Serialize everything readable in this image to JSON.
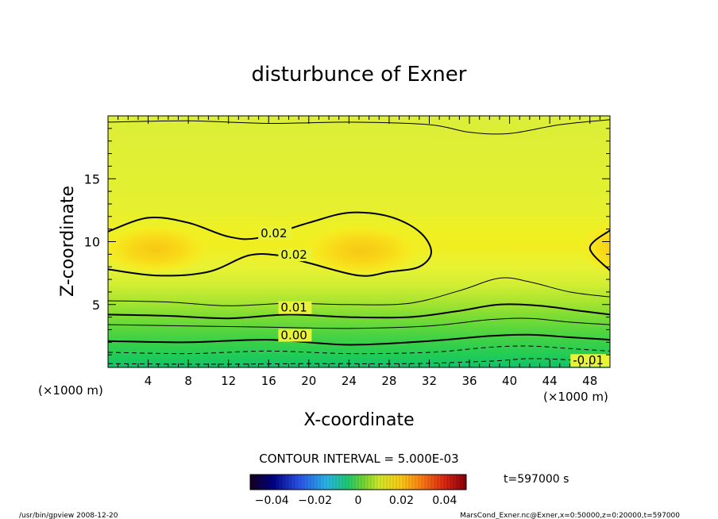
{
  "chart_data": {
    "type": "contour",
    "title": "disturbunce of Exner",
    "xlabel": "X-coordinate",
    "ylabel": "Z-coordinate",
    "x_unit_left": "(×1000 m)",
    "x_unit_right": "(×1000 m)",
    "xlim": [
      0,
      50
    ],
    "ylim": [
      0,
      20
    ],
    "x_ticks": [
      4,
      8,
      12,
      16,
      20,
      24,
      28,
      32,
      36,
      40,
      44,
      48
    ],
    "y_ticks": [
      5,
      10,
      15
    ],
    "contour_interval_text": "CONTOUR INTERVAL = 5.000E-03",
    "contour_labels": [
      {
        "text": "0.02",
        "x": 15.2,
        "z": 10.4
      },
      {
        "text": "0.02",
        "x": 17.2,
        "z": 8.7
      },
      {
        "text": "0.01",
        "x": 17.2,
        "z": 4.5
      },
      {
        "text": "0.00",
        "x": 17.2,
        "z": 2.3
      },
      {
        "text": "-0.01",
        "x": 46.3,
        "z": 0.3
      }
    ],
    "contours": [
      {
        "level": 0.02,
        "style": "thick",
        "points": [
          [
            0,
            10.8
          ],
          [
            4,
            11.9
          ],
          [
            8,
            11.5
          ],
          [
            12,
            10.4
          ],
          [
            15,
            10.3
          ],
          [
            20,
            11.5
          ],
          [
            24,
            12.3
          ],
          [
            28,
            12
          ],
          [
            31,
            10.8
          ],
          [
            32.2,
            9.2
          ],
          [
            31,
            8
          ],
          [
            28,
            7.6
          ],
          [
            25,
            7.3
          ],
          [
            20,
            8.3
          ],
          [
            17,
            8.9
          ],
          [
            14,
            8.9
          ],
          [
            10,
            7.6
          ],
          [
            5,
            7.3
          ],
          [
            0,
            7.8
          ]
        ]
      },
      {
        "level": 0.02,
        "style": "thick",
        "points": [
          [
            50,
            10.9
          ],
          [
            48,
            9.5
          ],
          [
            50,
            7.7
          ]
        ]
      },
      {
        "level": 0.015,
        "style": "thin",
        "points": [
          [
            0,
            5.3
          ],
          [
            6,
            5.2
          ],
          [
            12,
            4.9
          ],
          [
            18,
            5.1
          ],
          [
            24,
            5
          ],
          [
            30,
            5.1
          ],
          [
            35,
            6.1
          ],
          [
            39,
            7.1
          ],
          [
            42,
            6.8
          ],
          [
            46,
            6
          ],
          [
            50,
            5.6
          ]
        ]
      },
      {
        "level": 0.01,
        "style": "thick",
        "points": [
          [
            0,
            4.2
          ],
          [
            6,
            4.1
          ],
          [
            12,
            3.9
          ],
          [
            18,
            4.2
          ],
          [
            24,
            4
          ],
          [
            30,
            4
          ],
          [
            35,
            4.5
          ],
          [
            39,
            5
          ],
          [
            43,
            4.9
          ],
          [
            47,
            4.5
          ],
          [
            50,
            4.2
          ]
        ]
      },
      {
        "level": 0.005,
        "style": "thin",
        "points": [
          [
            0,
            3.4
          ],
          [
            8,
            3.3
          ],
          [
            16,
            3.2
          ],
          [
            24,
            3.1
          ],
          [
            32,
            3.3
          ],
          [
            38,
            3.8
          ],
          [
            42,
            3.9
          ],
          [
            46,
            3.6
          ],
          [
            50,
            3.4
          ]
        ]
      },
      {
        "level": 0.0,
        "style": "thick",
        "points": [
          [
            0,
            2.1
          ],
          [
            8,
            2
          ],
          [
            16,
            2.2
          ],
          [
            24,
            1.8
          ],
          [
            32,
            2.1
          ],
          [
            38,
            2.5
          ],
          [
            42,
            2.6
          ],
          [
            46,
            2.4
          ],
          [
            50,
            2.2
          ]
        ]
      },
      {
        "level": -0.005,
        "style": "dashed",
        "points": [
          [
            0,
            1.2
          ],
          [
            8,
            1.1
          ],
          [
            16,
            1.3
          ],
          [
            24,
            1.1
          ],
          [
            32,
            1.2
          ],
          [
            38,
            1.6
          ],
          [
            42,
            1.7
          ],
          [
            46,
            1.5
          ],
          [
            50,
            1.3
          ]
        ]
      },
      {
        "level": -0.01,
        "style": "dashed",
        "points": [
          [
            0,
            0.3
          ],
          [
            10,
            0.25
          ],
          [
            20,
            0.3
          ],
          [
            30,
            0.3
          ],
          [
            38,
            0.5
          ],
          [
            42,
            0.7
          ],
          [
            46,
            0.6
          ],
          [
            50,
            0.4
          ]
        ]
      },
      {
        "level": 0.015,
        "style": "thin",
        "points": [
          [
            0,
            19.5
          ],
          [
            8,
            19.6
          ],
          [
            16,
            19.4
          ],
          [
            24,
            19.5
          ],
          [
            32,
            19.3
          ],
          [
            36,
            18.7
          ],
          [
            40,
            18.6
          ],
          [
            45,
            19.3
          ],
          [
            50,
            19.7
          ]
        ]
      }
    ],
    "colorbar": {
      "range": [
        -0.05,
        0.05
      ],
      "tick_labels": [
        "−0.04",
        "−0.02",
        "0",
        "0.02",
        "0.04"
      ]
    },
    "time_label": "t=597000 s"
  },
  "footer": {
    "left": "/usr/bin/gpview   2008-12-20",
    "right": "MarsCond_Exner.nc@Exner,x=0:50000,z=0:20000,t=597000"
  }
}
